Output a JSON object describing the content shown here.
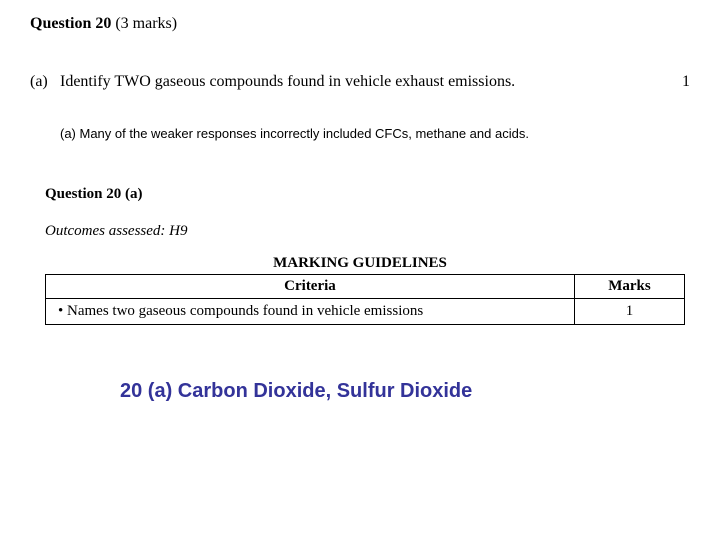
{
  "header": {
    "label": "Question 20",
    "marks": "(3 marks)"
  },
  "part": {
    "letter": "(a)",
    "text": "Identify TWO gaseous compounds found in vehicle exhaust emissions.",
    "score": "1"
  },
  "commentary": "(a) Many of the weaker responses incorrectly included CFCs, methane and acids.",
  "subheader": "Question 20 (a)",
  "outcomes": "Outcomes assessed: H9",
  "guidelines_title": "MARKING GUIDELINES",
  "rubric": {
    "criteria_header": "Criteria",
    "marks_header": "Marks",
    "criteria_cell": "•  Names two gaseous compounds found in vehicle emissions",
    "marks_cell": "1"
  },
  "answer": "20 (a) Carbon Dioxide, Sulfur Dioxide",
  "colors": {
    "answer_color": "#333399",
    "text_color": "#000000",
    "bg_color": "#ffffff",
    "border_color": "#000000"
  }
}
